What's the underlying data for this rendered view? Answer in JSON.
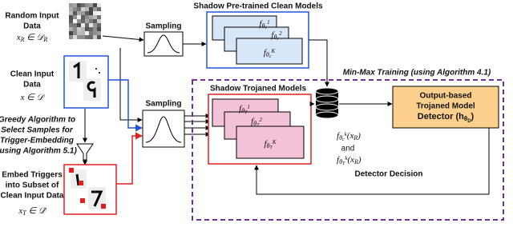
{
  "random_input": {
    "label": [
      "Random Input",
      "Data"
    ],
    "math": [
      {
        "text": "x"
      },
      {
        "sub": "R"
      },
      {
        "text": " ∈ 𝒟"
      },
      {
        "sub": "R"
      }
    ]
  },
  "clean_input": {
    "label": [
      "Clean Input",
      "Data"
    ],
    "math": [
      {
        "text": "x ∈ 𝒟"
      }
    ]
  },
  "greedy": {
    "label": [
      "Greedy Algorithm to",
      "Select Samples for",
      "Trigger-Embedding",
      "(using Algorithm 5.1)"
    ]
  },
  "embed": {
    "label": [
      "Embed Triggers",
      "into Subset of",
      "Clean Input Data"
    ],
    "math": [
      {
        "text": "x"
      },
      {
        "sub": "T"
      },
      {
        "text": " ∈ 𝒟̃"
      }
    ]
  },
  "sampling": [
    "Sampling",
    "Sampling"
  ],
  "clean_models": {
    "title": "Shadow Pre-trained Clean Models",
    "models": [
      [
        {
          "text": "f"
        },
        {
          "sub": "θ"
        },
        {
          "sub2": "c"
        },
        {
          "sup": "1"
        }
      ],
      [
        {
          "text": "f"
        },
        {
          "sub": "θ"
        },
        {
          "sub2": "c"
        },
        {
          "sup": "2"
        }
      ],
      [
        {
          "text": "f"
        },
        {
          "sub": "θ"
        },
        {
          "sub2": "c"
        },
        {
          "sup": "K"
        }
      ]
    ]
  },
  "trojan_models": {
    "title": "Shadow Trojaned Models",
    "models": [
      [
        {
          "text": "f"
        },
        {
          "sub": "θ"
        },
        {
          "sub2": "T"
        },
        {
          "sup": "1"
        }
      ],
      [
        {
          "text": "f"
        },
        {
          "sub": "θ"
        },
        {
          "sub2": "T"
        },
        {
          "sup": "2"
        }
      ],
      [
        {
          "text": "f"
        },
        {
          "sub": "θ"
        },
        {
          "sub2": "T"
        },
        {
          "sup": "K"
        }
      ]
    ]
  },
  "min_max": "Min-Max Training (using Algorithm 4.1)",
  "outputs": {
    "clean": [
      {
        "text": "f"
      },
      {
        "sub": "θ"
      },
      {
        "sub2": "c"
      },
      {
        "sup": "k"
      },
      {
        "text": "(x"
      },
      {
        "sub": "R"
      },
      {
        "text": ")"
      }
    ],
    "and": "and",
    "trojan": [
      {
        "text": "f"
      },
      {
        "sub": "θ"
      },
      {
        "sub2": "T"
      },
      {
        "sup": "k"
      },
      {
        "text": "(x"
      },
      {
        "sub": "R"
      },
      {
        "text": ")"
      }
    ]
  },
  "detector": {
    "label": [
      "Output-based",
      "Trojaned Model"
    ],
    "math": [
      {
        "text": "Detector (h"
      },
      {
        "sub": "θ"
      },
      {
        "sub2": "D"
      },
      {
        "text": ")"
      }
    ]
  },
  "decision": "Detector Decision"
}
